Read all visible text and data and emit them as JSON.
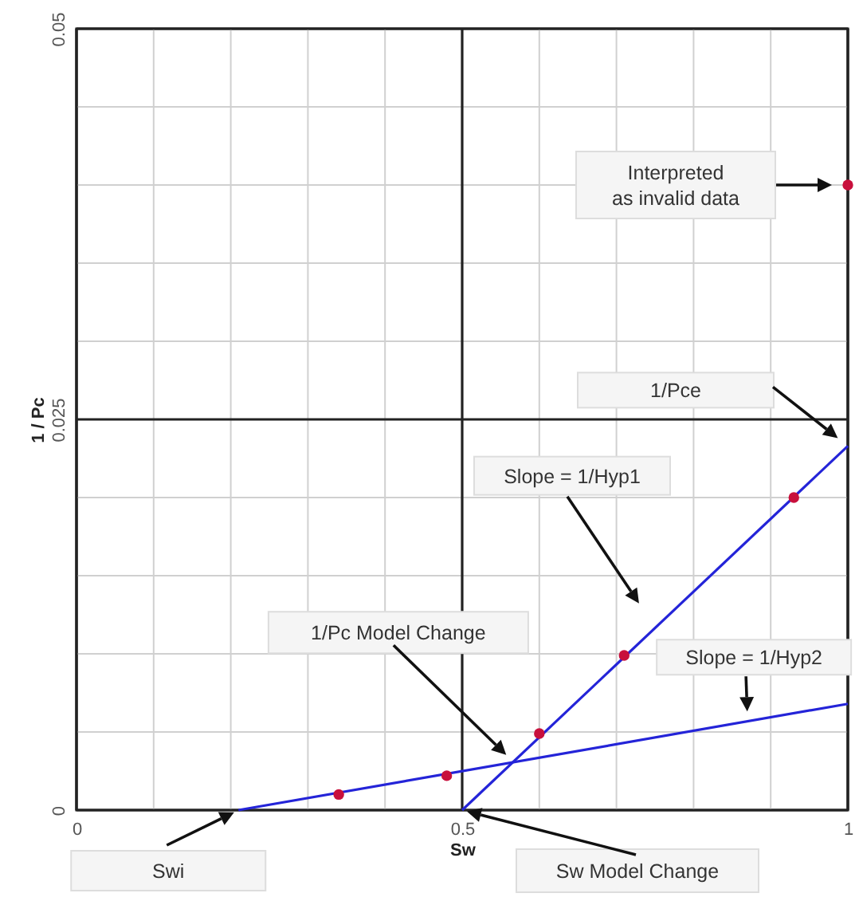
{
  "chart_data": {
    "type": "scatter",
    "xlabel": "Sw",
    "ylabel": "1 / Pc",
    "xlim": [
      0,
      1
    ],
    "ylim": [
      0,
      0.05
    ],
    "xticks": [
      0,
      {
        "value": 0.1,
        "label": null
      },
      {
        "value": 0.2,
        "label": null
      },
      {
        "value": 0.3,
        "label": null
      },
      {
        "value": 0.4,
        "label": null
      },
      0.5,
      {
        "value": 0.6,
        "label": null
      },
      {
        "value": 0.7,
        "label": null
      },
      {
        "value": 0.8,
        "label": null
      },
      {
        "value": 0.9,
        "label": null
      },
      1
    ],
    "yticks": [
      0,
      {
        "value": 0.005,
        "label": null
      },
      {
        "value": 0.01,
        "label": null
      },
      {
        "value": 0.015,
        "label": null
      },
      {
        "value": 0.02,
        "label": null
      },
      0.025,
      {
        "value": 0.03,
        "label": null
      },
      {
        "value": 0.035,
        "label": null
      },
      {
        "value": 0.04,
        "label": null
      },
      {
        "value": 0.045,
        "label": null
      },
      0.05
    ],
    "grid": true,
    "series": [
      {
        "type": "line",
        "color": "#2424d8",
        "x": [
          0.5,
          1
        ],
        "values": [
          0,
          0.0233
        ]
      },
      {
        "type": "line",
        "color": "#2424d8",
        "x": [
          0.21,
          1
        ],
        "values": [
          0,
          0.0068
        ]
      },
      {
        "marker": "circle",
        "color": "#c8103c",
        "x": [
          0.34,
          0.48,
          0.6,
          0.71,
          0.93,
          1
        ],
        "values": [
          0.001,
          0.0022,
          0.0049,
          0.0099,
          0.02,
          0.04
        ]
      }
    ],
    "annotations": [
      "Swi",
      "Sw Model Change",
      "1/Pc Model Change",
      "Slope = 1/Hyp1",
      "Slope = 1/Hyp2",
      "1/Pce",
      "Interpreted as invalid data"
    ]
  }
}
